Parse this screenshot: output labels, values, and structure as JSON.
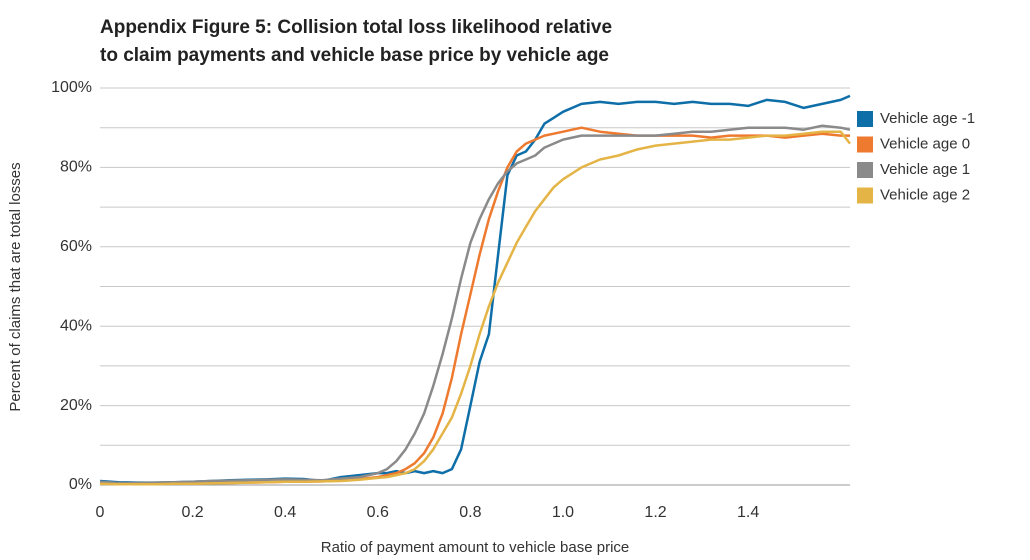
{
  "chart_data": {
    "type": "line",
    "title_lines": [
      "Appendix Figure 5: Collision total loss likelihood relative",
      "to claim payments and vehicle base price by vehicle age"
    ],
    "x_label": "Ratio of payment amount to vehicle base price",
    "y_label": "Percent of claims that are total losses",
    "x": [
      0,
      0.04,
      0.08,
      0.12,
      0.16,
      0.2,
      0.24,
      0.28,
      0.32,
      0.36,
      0.4,
      0.44,
      0.48,
      0.52,
      0.56,
      0.6,
      0.62,
      0.64,
      0.66,
      0.68,
      0.7,
      0.72,
      0.74,
      0.76,
      0.78,
      0.8,
      0.82,
      0.84,
      0.86,
      0.88,
      0.9,
      0.92,
      0.94,
      0.96,
      0.98,
      1.0,
      1.04,
      1.08,
      1.12,
      1.16,
      1.2,
      1.24,
      1.28,
      1.32,
      1.36,
      1.4,
      1.44,
      1.48,
      1.52,
      1.56,
      1.6,
      1.62
    ],
    "series": [
      {
        "name": "Vehicle age -1",
        "color": "#0e6ea8",
        "values": [
          1,
          0.7,
          0.6,
          0.6,
          0.7,
          0.8,
          1,
          1.2,
          1.3,
          1.4,
          1.6,
          1.5,
          1,
          2,
          2.5,
          3,
          3,
          3.5,
          3,
          3.5,
          3,
          3.5,
          3,
          4,
          9,
          20,
          31,
          38,
          58,
          78,
          83,
          84,
          87,
          91,
          92.5,
          94,
          96,
          96.5,
          96,
          96.5,
          96.5,
          96,
          96.5,
          96,
          96,
          95.5,
          97,
          96.5,
          95,
          96,
          97,
          98
        ]
      },
      {
        "name": "Vehicle age 0",
        "color": "#ee7a30",
        "values": [
          0.5,
          0.3,
          0.3,
          0.3,
          0.4,
          0.4,
          0.5,
          0.5,
          0.6,
          0.7,
          0.8,
          0.8,
          0.9,
          1.2,
          1.5,
          2,
          2.5,
          3,
          4,
          5.5,
          8,
          12,
          18,
          27,
          38,
          48,
          58,
          67,
          74,
          80,
          84,
          86,
          87,
          88,
          88.5,
          89,
          90,
          89,
          88.5,
          88,
          88,
          88,
          88,
          87.5,
          88,
          88,
          88,
          87.5,
          88,
          88.5,
          88,
          88
        ]
      },
      {
        "name": "Vehicle age 1",
        "color": "#8a8a8a",
        "values": [
          0.8,
          0.5,
          0.5,
          0.6,
          0.7,
          0.8,
          1,
          1.1,
          1.2,
          1.3,
          1.4,
          1.3,
          1.2,
          1.6,
          2,
          3,
          4,
          6,
          9,
          13,
          18,
          25,
          33,
          42,
          52,
          61,
          67,
          72,
          76,
          79,
          81,
          82,
          83,
          85,
          86,
          87,
          88,
          88,
          88,
          88,
          88,
          88.5,
          89,
          89,
          89.5,
          90,
          90,
          90,
          89.5,
          90.5,
          90,
          89.5
        ]
      },
      {
        "name": "Vehicle age 2",
        "color": "#e5b447",
        "values": [
          0.3,
          0.2,
          0.2,
          0.2,
          0.3,
          0.3,
          0.4,
          0.5,
          0.6,
          0.7,
          0.8,
          0.8,
          0.9,
          1,
          1.3,
          1.8,
          2,
          2.5,
          3,
          4,
          6,
          9,
          13,
          17,
          23,
          30,
          38,
          45,
          51,
          56,
          61,
          65,
          69,
          72,
          75,
          77,
          80,
          82,
          83,
          84.5,
          85.5,
          86,
          86.5,
          87,
          87,
          87.5,
          88,
          88,
          88.5,
          89,
          89,
          86
        ]
      }
    ],
    "xlim": [
      0,
      1.62
    ],
    "xticks": [
      0,
      0.2,
      0.4,
      0.6,
      0.8,
      {
        "value": 1,
        "label": "1.0"
      },
      1.2,
      1.4
    ],
    "ylim": [
      0,
      100
    ],
    "yticks": [
      {
        "value": 0,
        "label": "0%"
      },
      {
        "value": 20,
        "label": "20%"
      },
      {
        "value": 40,
        "label": "40%"
      },
      {
        "value": 60,
        "label": "60%"
      },
      {
        "value": 80,
        "label": "80%"
      },
      {
        "value": 100,
        "label": "100%"
      }
    ],
    "minor_yticks": [
      10,
      30,
      50,
      70,
      90
    ],
    "grid": true,
    "legend": "right"
  }
}
